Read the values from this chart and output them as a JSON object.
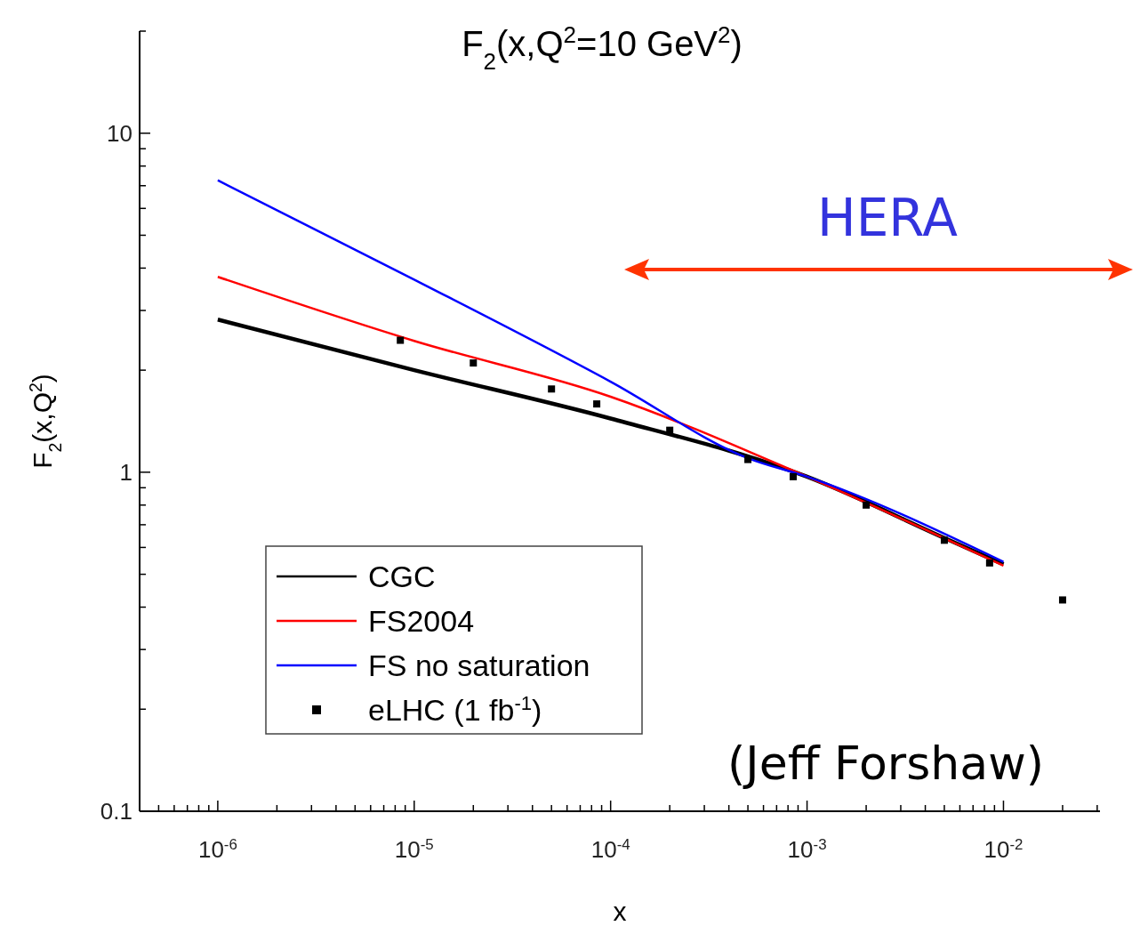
{
  "chart_data": {
    "type": "line",
    "title": "F$_{2}$(x,Q$^{2}$=10 GeV$^{2}$)",
    "xlabel": "x",
    "ylabel": "F$_{2}$(x,Q$^{2}$)",
    "log": "xy",
    "xlim": [
      4e-07,
      0.031
    ],
    "ylim": [
      0.1,
      20
    ],
    "xticks": [
      {
        "value": 5e-07,
        "label": null
      },
      {
        "value": 6e-07,
        "label": null
      },
      {
        "value": 7e-07,
        "label": null
      },
      {
        "value": 8e-07,
        "label": null
      },
      {
        "value": 9e-07,
        "label": null
      },
      {
        "value": 1e-06,
        "label": "10$^{-6}$"
      },
      {
        "value": 2e-06,
        "label": null
      },
      {
        "value": 3e-06,
        "label": null
      },
      {
        "value": 4e-06,
        "label": null
      },
      {
        "value": 5e-06,
        "label": null
      },
      {
        "value": 6e-06,
        "label": null
      },
      {
        "value": 7e-06,
        "label": null
      },
      {
        "value": 8e-06,
        "label": null
      },
      {
        "value": 9e-06,
        "label": null
      },
      {
        "value": 1e-05,
        "label": "10$^{-5}$"
      },
      {
        "value": 2e-05,
        "label": null
      },
      {
        "value": 3e-05,
        "label": null
      },
      {
        "value": 4e-05,
        "label": null
      },
      {
        "value": 5e-05,
        "label": null
      },
      {
        "value": 6e-05,
        "label": null
      },
      {
        "value": 7e-05,
        "label": null
      },
      {
        "value": 8e-05,
        "label": null
      },
      {
        "value": 9e-05,
        "label": null
      },
      {
        "value": 0.0001,
        "label": "10$^{-4}$"
      },
      {
        "value": 0.0002,
        "label": null
      },
      {
        "value": 0.0003,
        "label": null
      },
      {
        "value": 0.0004,
        "label": null
      },
      {
        "value": 0.0005,
        "label": null
      },
      {
        "value": 0.0006,
        "label": null
      },
      {
        "value": 0.0007,
        "label": null
      },
      {
        "value": 0.0008,
        "label": null
      },
      {
        "value": 0.0009,
        "label": null
      },
      {
        "value": 0.001,
        "label": "10$^{-3}$"
      },
      {
        "value": 0.002,
        "label": null
      },
      {
        "value": 0.003,
        "label": null
      },
      {
        "value": 0.004,
        "label": null
      },
      {
        "value": 0.005,
        "label": null
      },
      {
        "value": 0.006,
        "label": null
      },
      {
        "value": 0.007,
        "label": null
      },
      {
        "value": 0.008,
        "label": null
      },
      {
        "value": 0.009,
        "label": null
      },
      {
        "value": 0.01,
        "label": "10$^{-2}$"
      },
      {
        "value": 0.02,
        "label": null
      },
      {
        "value": 0.03,
        "label": null
      }
    ],
    "yticks": [
      0.1,
      {
        "value": 0.2,
        "label": null
      },
      {
        "value": 0.3,
        "label": null
      },
      {
        "value": 0.4,
        "label": null
      },
      {
        "value": 0.5,
        "label": null
      },
      {
        "value": 0.6,
        "label": null
      },
      {
        "value": 0.7,
        "label": null
      },
      {
        "value": 0.8,
        "label": null
      },
      {
        "value": 0.9,
        "label": null
      },
      1,
      {
        "value": 2,
        "label": null
      },
      {
        "value": 3,
        "label": null
      },
      {
        "value": 4,
        "label": null
      },
      {
        "value": 5,
        "label": null
      },
      {
        "value": 6,
        "label": null
      },
      {
        "value": 7,
        "label": null
      },
      {
        "value": 8,
        "label": null
      },
      {
        "value": 9,
        "label": null
      },
      10,
      {
        "value": 20,
        "label": null
      }
    ],
    "legend": "bottom left",
    "grid": false,
    "series": [
      {
        "name": "CGC",
        "color": "#000000",
        "x": [
          1e-06,
          1e-05,
          0.0001,
          0.001,
          0.005,
          0.01
        ],
        "values": [
          2.82,
          2.0,
          1.44,
          0.97,
          0.64,
          0.535
        ]
      },
      {
        "name": "FS2004",
        "color": "#ff0000",
        "x": [
          1e-06,
          1e-05,
          0.0001,
          0.001,
          0.01
        ],
        "values": [
          3.77,
          2.44,
          1.67,
          0.97,
          0.53
        ]
      },
      {
        "name": "FS no saturation",
        "color": "#0000ff",
        "x": [
          1e-06,
          1e-05,
          0.0001,
          0.0005,
          0.001,
          0.01
        ],
        "values": [
          7.26,
          3.7,
          1.85,
          1.1,
          0.97,
          0.544
        ]
      },
      {
        "name": "eLHC (1 fb$^{-1}$)",
        "type": "scatter",
        "marker": "square",
        "color": "#000000",
        "x": [
          8.5e-06,
          2e-05,
          5e-05,
          8.5e-05,
          0.0002,
          0.0005,
          0.00085,
          0.002,
          0.005,
          0.0085,
          0.02
        ],
        "values": [
          2.45,
          2.1,
          1.76,
          1.59,
          1.33,
          1.09,
          0.97,
          0.8,
          0.63,
          0.54,
          0.42
        ]
      }
    ],
    "annotations": [
      "HERA",
      "(Jeff Forshaw)"
    ]
  }
}
